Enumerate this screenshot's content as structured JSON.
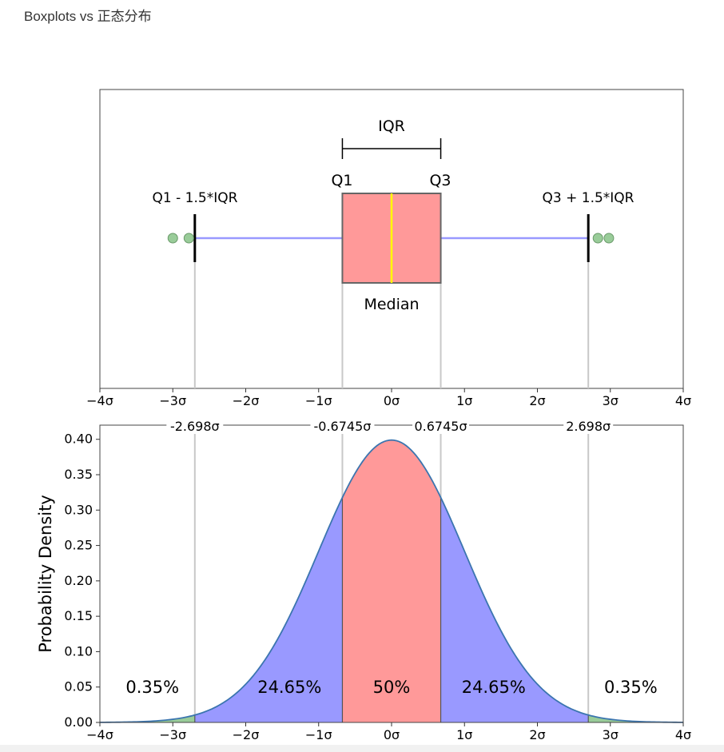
{
  "caption": "Boxplots vs 正态分布",
  "chart_data": [
    {
      "type": "boxplot",
      "orientation": "horizontal",
      "x_unit": "σ",
      "xlim": [
        -4,
        4
      ],
      "x_ticks": [
        -4,
        -3,
        -2,
        -1,
        0,
        1,
        2,
        3,
        4
      ],
      "x_tick_labels": [
        "−4σ",
        "−3σ",
        "−2σ",
        "−1σ",
        "0σ",
        "1σ",
        "2σ",
        "3σ",
        "4σ"
      ],
      "box": {
        "q1": -0.6745,
        "median": 0,
        "q3": 0.6745,
        "whisker_low": -2.698,
        "whisker_high": 2.698
      },
      "outliers": [
        -3.0,
        -2.78,
        2.83,
        2.98
      ],
      "annotations": {
        "iqr": "IQR",
        "q1": "Q1",
        "q3": "Q3",
        "lower_fence": "Q1 - 1.5*IQR",
        "upper_fence": "Q3 + 1.5*IQR",
        "median": "Median"
      },
      "colors": {
        "box": "#ff9999",
        "median": "#ffff00",
        "whisker": "#9999ff",
        "outlier": "#99cc99"
      }
    },
    {
      "type": "area",
      "ylabel": "Probability Density",
      "xlim": [
        -4,
        4
      ],
      "ylim": [
        0,
        0.42
      ],
      "x_ticks": [
        -4,
        -3,
        -2,
        -1,
        0,
        1,
        2,
        3,
        4
      ],
      "x_tick_labels": [
        "−4σ",
        "−3σ",
        "−2σ",
        "−1σ",
        "0σ",
        "1σ",
        "2σ",
        "3σ",
        "4σ"
      ],
      "y_ticks": [
        0,
        0.05,
        0.1,
        0.15,
        0.2,
        0.25,
        0.3,
        0.35,
        0.4
      ],
      "y_tick_labels": [
        "0.00",
        "0.05",
        "0.10",
        "0.15",
        "0.20",
        "0.25",
        "0.30",
        "0.35",
        "0.40"
      ],
      "boundaries": [
        -2.698,
        -0.6745,
        0.6745,
        2.698
      ],
      "boundary_labels": [
        "-2.698σ",
        "-0.6745σ",
        "0.6745σ",
        "2.698σ"
      ],
      "regions": [
        {
          "from": -4,
          "to": -2.698,
          "percent": "0.35%",
          "color": "#99cc99"
        },
        {
          "from": -2.698,
          "to": -0.6745,
          "percent": "24.65%",
          "color": "#9999ff"
        },
        {
          "from": -0.6745,
          "to": 0.6745,
          "percent": "50%",
          "color": "#ff9999"
        },
        {
          "from": 0.6745,
          "to": 2.698,
          "percent": "24.65%",
          "color": "#9999ff"
        },
        {
          "from": 2.698,
          "to": 4,
          "percent": "0.35%",
          "color": "#99cc99"
        }
      ],
      "curve_color": "#3b75af"
    }
  ]
}
